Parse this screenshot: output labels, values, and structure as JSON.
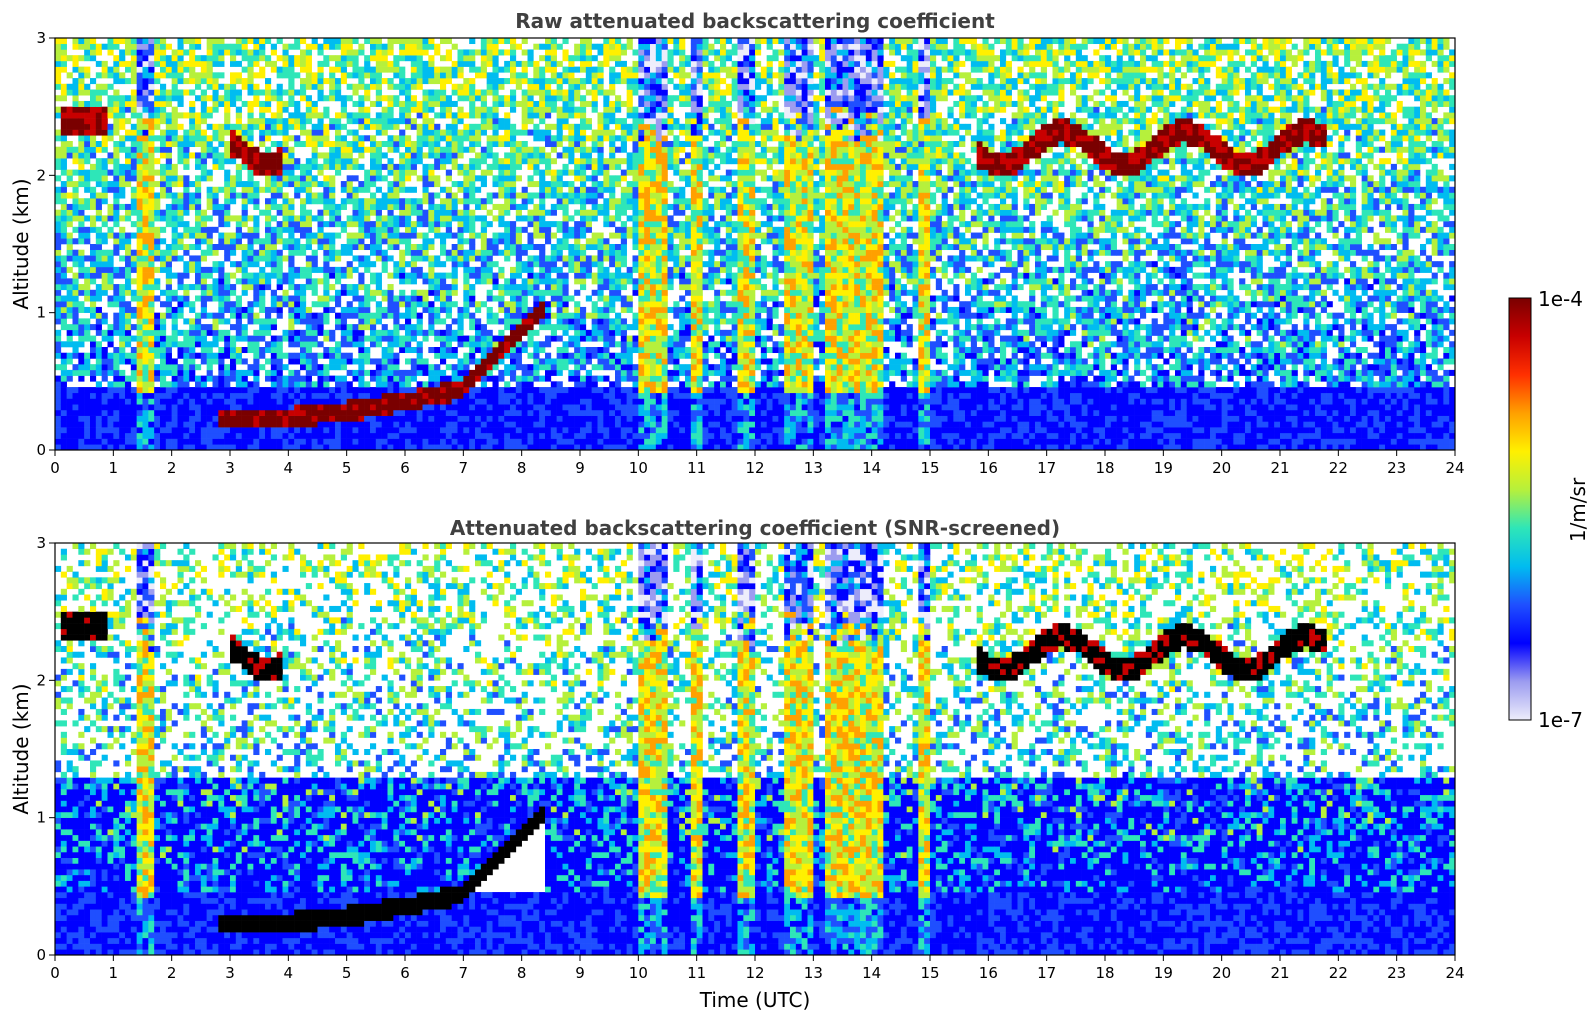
{
  "chart_data": [
    {
      "type": "heatmap",
      "title": "Raw attenuated backscattering coefficient",
      "xlabel": "",
      "ylabel": "Altitude (km)",
      "xlim": [
        0,
        24
      ],
      "ylim": [
        0,
        3
      ],
      "xticks": [
        "0",
        "1",
        "2",
        "3",
        "4",
        "5",
        "6",
        "7",
        "8",
        "9",
        "10",
        "11",
        "12",
        "13",
        "14",
        "15",
        "16",
        "17",
        "18",
        "19",
        "20",
        "21",
        "22",
        "23",
        "24"
      ],
      "yticks": [
        "0",
        "1",
        "2",
        "3"
      ],
      "features": [
        {
          "kind": "convective column",
          "x": [
            1.3,
            1.8
          ],
          "y": [
            0,
            2.5
          ]
        },
        {
          "kind": "boundary-layer top",
          "x": [
            2.8,
            8.0
          ],
          "y": [
            0.2,
            1.0
          ]
        },
        {
          "kind": "cloud layer",
          "x": [
            3.0,
            4.0
          ],
          "y": [
            2.25,
            2.4
          ]
        },
        {
          "kind": "cloud layer",
          "x": [
            15.8,
            21.8
          ],
          "y": [
            2.15,
            2.4
          ]
        },
        {
          "kind": "precipitation columns",
          "x": [
            9.8,
            14.6
          ],
          "y": [
            0,
            2.4
          ]
        }
      ]
    },
    {
      "type": "heatmap",
      "title": "Attenuated backscattering coefficient (SNR-screened)",
      "xlabel": "Time (UTC)",
      "ylabel": "Altitude (km)",
      "xlim": [
        0,
        24
      ],
      "ylim": [
        0,
        3
      ],
      "xticks": [
        "0",
        "1",
        "2",
        "3",
        "4",
        "5",
        "6",
        "7",
        "8",
        "9",
        "10",
        "11",
        "12",
        "13",
        "14",
        "15",
        "16",
        "17",
        "18",
        "19",
        "20",
        "21",
        "22",
        "23",
        "24"
      ],
      "yticks": [
        "0",
        "1",
        "2",
        "3"
      ]
    }
  ],
  "colorbar": {
    "label": "1/m/sr",
    "max_label": "1e-4",
    "min_label": "1e-7",
    "scale": "log",
    "colors": [
      "#ededfb",
      "#9c9cf0",
      "#0000ff",
      "#1f4fff",
      "#00bcf0",
      "#2ee6b8",
      "#b6f03c",
      "#fff000",
      "#ffa000",
      "#ff3000",
      "#c80000",
      "#7a0000"
    ]
  }
}
